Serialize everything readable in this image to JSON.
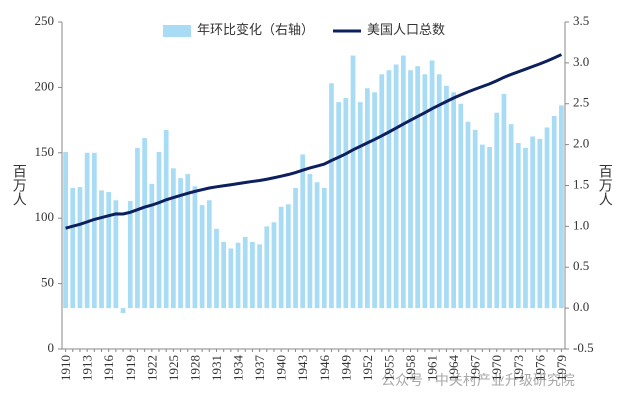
{
  "chart_data": {
    "type": "bar_line",
    "categories": [
      "1910",
      null,
      null,
      "1913",
      null,
      null,
      "1916",
      null,
      null,
      "1919",
      null,
      null,
      "1922",
      null,
      null,
      "1925",
      null,
      null,
      "1928",
      null,
      null,
      "1931",
      null,
      null,
      "1934",
      null,
      null,
      "1937",
      null,
      null,
      "1940",
      null,
      null,
      "1943",
      null,
      null,
      "1946",
      null,
      null,
      "1949",
      null,
      null,
      "1952",
      null,
      null,
      "1955",
      null,
      null,
      "1958",
      null,
      null,
      "1961",
      null,
      null,
      "1964",
      null,
      null,
      "1967",
      null,
      null,
      "1970",
      null,
      null,
      "1973",
      null,
      null,
      "1976",
      null,
      null,
      "1979"
    ],
    "series": [
      {
        "name": "年环比变化（右轴）",
        "color": "#a8dcf5",
        "kind": "bar",
        "axis": "y2",
        "values": [
          1.91,
          1.47,
          1.48,
          1.9,
          1.9,
          1.44,
          1.42,
          1.32,
          -0.06,
          1.31,
          1.96,
          2.08,
          1.52,
          1.91,
          2.18,
          1.71,
          1.59,
          1.64,
          1.49,
          1.26,
          1.32,
          0.97,
          0.81,
          0.73,
          0.8,
          0.87,
          0.81,
          0.78,
          1.0,
          1.05,
          1.24,
          1.27,
          1.47,
          1.88,
          1.64,
          1.54,
          1.47,
          2.75,
          2.52,
          2.57,
          3.09,
          2.52,
          2.69,
          2.64,
          2.86,
          2.91,
          2.98,
          3.09,
          2.91,
          2.96,
          2.86,
          3.03,
          2.86,
          2.72,
          2.64,
          2.5,
          2.28,
          2.18,
          2.0,
          1.97,
          2.39,
          2.62,
          2.25,
          2.02,
          1.96,
          2.1,
          2.07,
          2.21,
          2.35,
          2.48
        ]
      },
      {
        "name": "美国人口总数",
        "color": "#0d1f5c",
        "kind": "line",
        "axis": "y",
        "values": [
          92.4,
          93.9,
          95.3,
          97.2,
          99.1,
          100.5,
          101.9,
          103.3,
          103.2,
          104.5,
          106.5,
          108.5,
          110.0,
          111.9,
          114.1,
          115.8,
          117.4,
          119.0,
          120.5,
          121.8,
          123.1,
          124.0,
          124.8,
          125.6,
          126.4,
          127.3,
          128.1,
          128.8,
          129.8,
          130.9,
          132.1,
          133.4,
          134.9,
          136.7,
          138.4,
          139.9,
          141.4,
          144.1,
          146.6,
          149.2,
          152.3,
          154.9,
          157.6,
          160.2,
          163.0,
          165.9,
          168.9,
          172.0,
          174.9,
          177.8,
          180.7,
          183.7,
          186.5,
          189.2,
          191.9,
          194.3,
          196.6,
          198.7,
          200.7,
          202.7,
          205.1,
          207.7,
          209.9,
          211.9,
          213.9,
          216.0,
          218.0,
          220.2,
          222.6,
          225.1
        ]
      }
    ],
    "y_label": "百万人",
    "y2_label": "百万人",
    "ylim": [
      0,
      250
    ],
    "yticks": [
      0,
      50,
      100,
      150,
      200,
      250
    ],
    "y2lim": [
      -0.5,
      3.5
    ],
    "y2ticks": [
      -0.5,
      {
        "value": 0,
        "label": "0.0"
      },
      0.5,
      {
        "value": 1,
        "label": "1.0"
      },
      1.5,
      {
        "value": 2,
        "label": "2.0"
      },
      2.5,
      {
        "value": 3,
        "label": "3.0"
      },
      3.5
    ],
    "legend": "top",
    "watermark": "公众号 · 中关村产业升级研究院"
  }
}
